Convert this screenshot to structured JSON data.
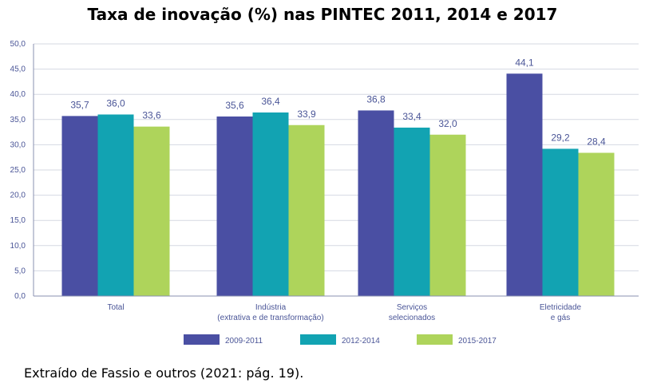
{
  "chart_data": {
    "type": "bar",
    "title": "Taxa de inovação (%) nas PINTEC 2011, 2014 e 2017",
    "categories": [
      [
        "Total"
      ],
      [
        "Indústria",
        "(extrativa e de transformação)"
      ],
      [
        "Serviços",
        "selecionados"
      ],
      [
        "Eletricidade",
        "e gás"
      ]
    ],
    "series": [
      {
        "name": "2009-2011",
        "color": "#4a4fa3",
        "values": [
          35.7,
          35.6,
          36.8,
          44.1
        ],
        "labels": [
          "35,7",
          "35,6",
          "36,8",
          "44,1"
        ]
      },
      {
        "name": "2012-2014",
        "color": "#12a3b2",
        "values": [
          36.0,
          36.4,
          33.4,
          29.2
        ],
        "labels": [
          "36,0",
          "36,4",
          "33,4",
          "29,2"
        ]
      },
      {
        "name": "2015-2017",
        "color": "#aed45b",
        "values": [
          33.6,
          33.9,
          32.0,
          28.4
        ],
        "labels": [
          "33,6",
          "33,9",
          "32,0",
          "28,4"
        ]
      }
    ],
    "yticks": [
      "0,0",
      "5,0",
      "10,0",
      "15,0",
      "20,0",
      "25,0",
      "30,0",
      "35,0",
      "40,0",
      "45,0",
      "50,0"
    ],
    "ylim": [
      0,
      50
    ],
    "grid": true,
    "legend_position": "bottom",
    "xlabel": "",
    "ylabel": ""
  },
  "caption": "Extraído de Fassio e outros (2021: pág. 19)."
}
